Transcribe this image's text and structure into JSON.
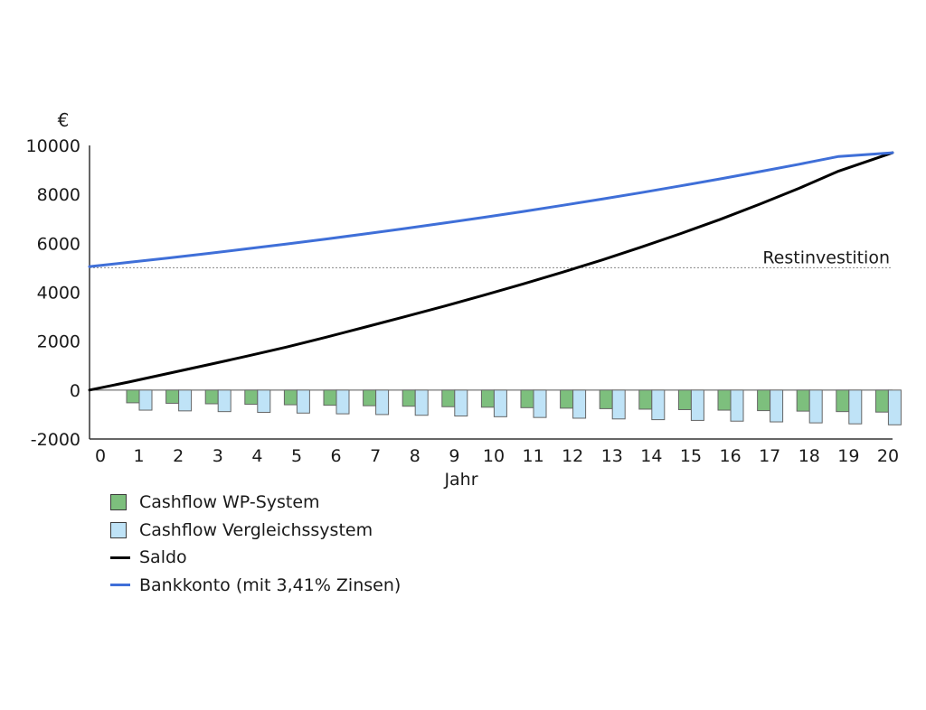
{
  "chart_data": {
    "type": "bar+line",
    "unit_label": "€",
    "xlabel": "Jahr",
    "ylabel": "",
    "title": "",
    "ylim": [
      -2000,
      10000
    ],
    "yticks": [
      10000,
      8000,
      6000,
      4000,
      2000,
      0,
      -2000
    ],
    "x": [
      0,
      1,
      2,
      3,
      4,
      5,
      6,
      7,
      8,
      9,
      10,
      11,
      12,
      13,
      14,
      15,
      16,
      17,
      18,
      19,
      20
    ],
    "bar_series": [
      {
        "name": "Cashflow WP-System",
        "color": "#7dbf7d",
        "x": [
          1,
          2,
          3,
          4,
          5,
          6,
          7,
          8,
          9,
          10,
          11,
          12,
          13,
          14,
          15,
          16,
          17,
          18,
          19,
          20
        ],
        "values": [
          -520,
          -540,
          -560,
          -580,
          -600,
          -620,
          -640,
          -660,
          -680,
          -700,
          -720,
          -740,
          -760,
          -780,
          -800,
          -820,
          -840,
          -860,
          -880,
          -900
        ]
      },
      {
        "name": "Cashflow Vergleichssystem",
        "color": "#bfe3f7",
        "x": [
          1,
          2,
          3,
          4,
          5,
          6,
          7,
          8,
          9,
          10,
          11,
          12,
          13,
          14,
          15,
          16,
          17,
          18,
          19,
          20
        ],
        "values": [
          -820,
          -850,
          -880,
          -910,
          -940,
          -970,
          -1000,
          -1030,
          -1060,
          -1090,
          -1120,
          -1150,
          -1180,
          -1210,
          -1240,
          -1270,
          -1300,
          -1340,
          -1380,
          -1420
        ]
      }
    ],
    "line_series": [
      {
        "name": "Saldo",
        "color": "#000000",
        "x": [
          0,
          1,
          2,
          3,
          4,
          5,
          6,
          7,
          8,
          9,
          10,
          11,
          12,
          13,
          14,
          15,
          16,
          17,
          18,
          19,
          20
        ],
        "values": [
          0,
          330,
          680,
          1030,
          1390,
          1760,
          2160,
          2580,
          3000,
          3430,
          3880,
          4340,
          4820,
          5320,
          5850,
          6400,
          6980,
          7600,
          8250,
          8950,
          9700
        ]
      },
      {
        "name": "Bankkonto (mit 3,41% Zinsen)",
        "color": "#3f6fd8",
        "x": [
          0,
          1,
          2,
          3,
          4,
          5,
          6,
          7,
          8,
          9,
          10,
          11,
          12,
          13,
          14,
          15,
          16,
          17,
          18,
          19,
          20
        ],
        "values": [
          5050,
          5222,
          5400,
          5584,
          5775,
          5972,
          6175,
          6386,
          6603,
          6829,
          7061,
          7302,
          7551,
          7808,
          8074,
          8350,
          8635,
          8929,
          9233,
          9548,
          9700
        ]
      }
    ],
    "reference_line": {
      "label": "Restinvestition",
      "value": 5000
    },
    "grid": false,
    "legend_position": "bottom-left"
  }
}
